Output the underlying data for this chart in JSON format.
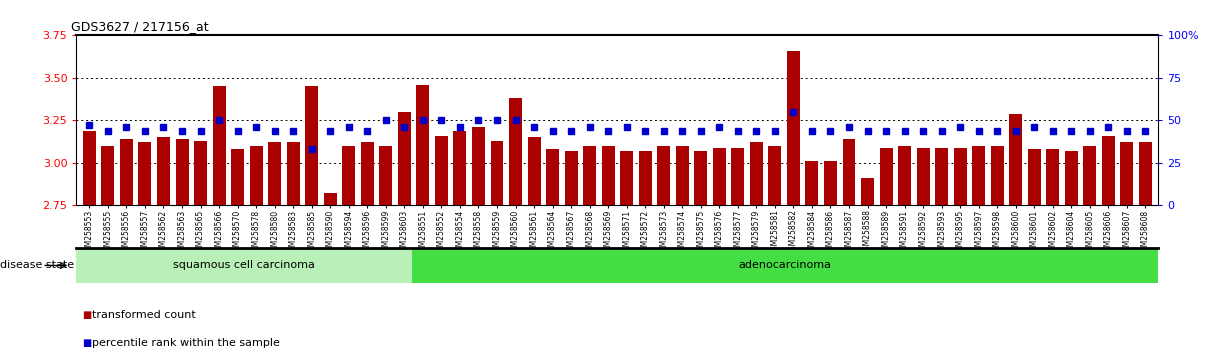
{
  "title": "GDS3627 / 217156_at",
  "ylim_left": [
    2.75,
    3.75
  ],
  "ylim_right": [
    0,
    100
  ],
  "yticks_left": [
    2.75,
    3.0,
    3.25,
    3.5,
    3.75
  ],
  "yticks_right": [
    0,
    25,
    50,
    75,
    100
  ],
  "hlines": [
    3.0,
    3.25,
    3.5
  ],
  "bar_color": "#aa0000",
  "dot_color": "#0000cc",
  "bar_width": 0.7,
  "squamous_label": "squamous cell carcinoma",
  "adeno_label": "adenocarcinoma",
  "disease_state_label": "disease state",
  "legend_bar": "transformed count",
  "legend_dot": "percentile rank within the sample",
  "squamous_color": "#b8f0b8",
  "adeno_color": "#44dd44",
  "samples": [
    "GSM258553",
    "GSM258555",
    "GSM258556",
    "GSM258557",
    "GSM258562",
    "GSM258563",
    "GSM258565",
    "GSM258566",
    "GSM258570",
    "GSM258578",
    "GSM258580",
    "GSM258583",
    "GSM258585",
    "GSM258590",
    "GSM258594",
    "GSM258596",
    "GSM258599",
    "GSM258603",
    "GSM258551",
    "GSM258552",
    "GSM258554",
    "GSM258558",
    "GSM258559",
    "GSM258560",
    "GSM258561",
    "GSM258564",
    "GSM258567",
    "GSM258568",
    "GSM258569",
    "GSM258571",
    "GSM258572",
    "GSM258573",
    "GSM258574",
    "GSM258575",
    "GSM258576",
    "GSM258577",
    "GSM258579",
    "GSM258581",
    "GSM258582",
    "GSM258584",
    "GSM258586",
    "GSM258587",
    "GSM258588",
    "GSM258589",
    "GSM258591",
    "GSM258592",
    "GSM258593",
    "GSM258595",
    "GSM258597",
    "GSM258598",
    "GSM258600",
    "GSM258601",
    "GSM258602",
    "GSM258604",
    "GSM258605",
    "GSM258606",
    "GSM258607",
    "GSM258608"
  ],
  "bar_values": [
    3.19,
    3.1,
    3.14,
    3.12,
    3.15,
    3.14,
    3.13,
    3.45,
    3.08,
    3.1,
    3.12,
    3.12,
    3.45,
    2.82,
    3.1,
    3.12,
    3.1,
    3.3,
    3.46,
    3.16,
    3.19,
    3.21,
    3.13,
    3.38,
    3.15,
    3.08,
    3.07,
    3.1,
    3.1,
    3.07,
    3.07,
    3.1,
    3.1,
    3.07,
    3.09,
    3.09,
    3.12,
    3.1,
    3.66,
    3.01,
    3.01,
    3.14,
    2.91,
    3.09,
    3.1,
    3.09,
    3.09,
    3.09,
    3.1,
    3.1,
    3.29,
    3.08,
    3.08,
    3.07,
    3.1,
    3.16,
    3.12,
    3.12
  ],
  "dot_values_pct": [
    47,
    44,
    46,
    44,
    46,
    44,
    44,
    50,
    44,
    46,
    44,
    44,
    33,
    44,
    46,
    44,
    50,
    46,
    50,
    50,
    46,
    50,
    50,
    50,
    46,
    44,
    44,
    46,
    44,
    46,
    44,
    44,
    44,
    44,
    46,
    44,
    44,
    44,
    55,
    44,
    44,
    46,
    44,
    44,
    44,
    44,
    44,
    46,
    44,
    44,
    44,
    46,
    44,
    44,
    44,
    46,
    44,
    44
  ],
  "n_squamous": 18,
  "n_adeno": 40
}
